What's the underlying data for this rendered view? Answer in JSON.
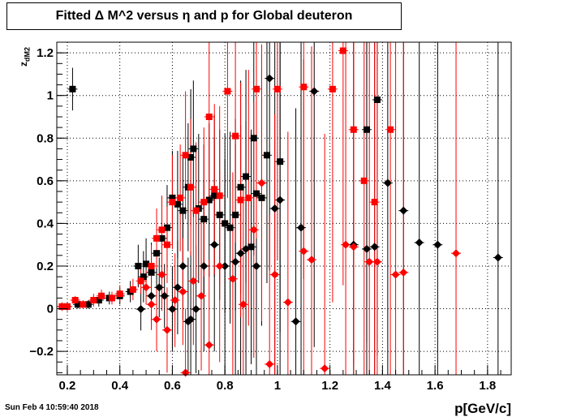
{
  "title": "Fitted Δ M^2 versus η and p for Global deuteron",
  "timestamp": "Sun Feb  4 10:59:40 2018",
  "chart_data": {
    "type": "scatter",
    "title": "Fitted Δ M^2 versus η and p for Global deuteron",
    "xlabel": "p[GeV/c]",
    "ylabel": "z_dM2",
    "xlim": [
      0.16,
      1.89
    ],
    "ylim": [
      -0.31,
      1.25
    ],
    "grid": true,
    "xticks": [
      "0.2",
      "0.4",
      "0.6",
      "0.8",
      "1",
      "1.2",
      "1.4",
      "1.6",
      "1.8"
    ],
    "yticks": [
      "-0.2",
      "0",
      "0.2",
      "0.4",
      "0.6",
      "0.8",
      "1",
      "1.2"
    ],
    "series": [
      {
        "color": "#000000",
        "marker": "square",
        "points": [
          [
            0.22,
            1.03,
            0.1
          ],
          [
            0.18,
            0.01,
            0.02
          ],
          [
            0.2,
            0.01,
            0.02
          ],
          [
            0.24,
            0.02,
            0.02
          ],
          [
            0.28,
            0.02,
            0.02
          ],
          [
            0.32,
            0.04,
            0.03
          ],
          [
            0.36,
            0.05,
            0.03
          ],
          [
            0.4,
            0.06,
            0.04
          ],
          [
            0.44,
            0.08,
            0.05
          ],
          [
            0.47,
            0.2,
            0.1
          ],
          [
            0.49,
            0.15,
            0.12
          ],
          [
            0.5,
            0.21,
            0.12
          ],
          [
            0.52,
            0.17,
            0.14
          ],
          [
            0.54,
            0.26,
            0.16
          ],
          [
            0.56,
            0.33,
            0.2
          ],
          [
            0.58,
            0.38,
            0.2
          ],
          [
            0.6,
            0.52,
            0.22
          ],
          [
            0.62,
            0.49,
            0.25
          ],
          [
            0.64,
            0.46,
            0.25
          ],
          [
            0.66,
            0.57,
            0.3
          ],
          [
            0.67,
            0.71,
            0.32
          ],
          [
            0.68,
            0.75,
            0.32
          ],
          [
            0.7,
            0.47,
            0.35
          ],
          [
            0.72,
            0.42,
            0.35
          ],
          [
            0.74,
            0.51,
            0.36
          ],
          [
            0.76,
            0.53,
            0.38
          ],
          [
            0.78,
            0.44,
            0.4
          ],
          [
            0.8,
            0.4,
            0.42
          ],
          [
            0.82,
            0.38,
            0.45
          ],
          [
            0.84,
            0.44,
            0.45
          ],
          [
            0.86,
            0.57,
            0.5
          ],
          [
            0.88,
            0.62,
            0.5
          ],
          [
            0.9,
            0.29,
            0.55
          ],
          [
            0.91,
            0.8,
            0.55
          ],
          [
            0.92,
            0.54,
            0.6
          ],
          [
            0.94,
            0.52,
            0.6
          ],
          [
            0.96,
            0.72,
            0.6
          ],
          [
            1.01,
            0.69,
            0.8
          ],
          [
            1.34,
            0.84,
            1.0
          ],
          [
            1.38,
            0.98,
            1.2
          ]
        ]
      },
      {
        "color": "#000000",
        "marker": "diamond",
        "points": [
          [
            0.48,
            -0.002,
            0.1
          ],
          [
            0.52,
            0.06,
            0.12
          ],
          [
            0.55,
            0.1,
            0.14
          ],
          [
            0.57,
            0.06,
            0.15
          ],
          [
            0.6,
            -0.002,
            0.2
          ],
          [
            0.62,
            0.1,
            0.22
          ],
          [
            0.64,
            0.2,
            0.25
          ],
          [
            0.66,
            -0.06,
            0.3
          ],
          [
            0.67,
            -0.05,
            0.32
          ],
          [
            0.69,
            -0.002,
            0.3
          ],
          [
            0.72,
            0.2,
            0.4
          ],
          [
            0.76,
            0.3,
            0.5
          ],
          [
            0.8,
            0.2,
            0.5
          ],
          [
            0.84,
            0.22,
            0.55
          ],
          [
            0.86,
            0.26,
            0.6
          ],
          [
            0.88,
            0.28,
            0.6
          ],
          [
            0.92,
            0.2,
            0.7
          ],
          [
            0.97,
            1.08,
            0.9
          ],
          [
            0.99,
            0.47,
            0.9
          ],
          [
            1.01,
            0.51,
            0.9
          ],
          [
            1.07,
            -0.06,
            1.0
          ],
          [
            1.09,
            0.38,
            1.0
          ],
          [
            1.14,
            1.02,
            1.2
          ],
          [
            1.29,
            0.3,
            1.3
          ],
          [
            1.34,
            0.28,
            1.3
          ],
          [
            1.37,
            0.29,
            1.3
          ],
          [
            1.42,
            0.59,
            1.5
          ],
          [
            1.48,
            0.46,
            1.5
          ],
          [
            1.54,
            0.31,
            1.6
          ],
          [
            1.61,
            0.3,
            1.6
          ],
          [
            1.84,
            0.24,
            1.6
          ]
        ]
      },
      {
        "color": "#ff0000",
        "marker": "square",
        "points": [
          [
            0.18,
            0.01,
            0.02
          ],
          [
            0.2,
            0.01,
            0.02
          ],
          [
            0.23,
            0.04,
            0.02
          ],
          [
            0.26,
            0.02,
            0.02
          ],
          [
            0.3,
            0.04,
            0.03
          ],
          [
            0.33,
            0.06,
            0.03
          ],
          [
            0.37,
            0.05,
            0.03
          ],
          [
            0.4,
            0.07,
            0.04
          ],
          [
            0.45,
            0.09,
            0.05
          ],
          [
            0.48,
            0.13,
            0.06
          ],
          [
            0.52,
            0.2,
            0.1
          ],
          [
            0.54,
            0.33,
            0.14
          ],
          [
            0.56,
            0.37,
            0.16
          ],
          [
            0.58,
            0.3,
            0.18
          ],
          [
            0.6,
            0.5,
            0.22
          ],
          [
            0.63,
            0.52,
            0.25
          ],
          [
            0.65,
            0.72,
            0.3
          ],
          [
            0.67,
            0.57,
            0.32
          ],
          [
            0.69,
            0.46,
            0.32
          ],
          [
            0.72,
            0.5,
            0.35
          ],
          [
            0.74,
            0.9,
            0.4
          ],
          [
            0.76,
            0.56,
            0.4
          ],
          [
            0.78,
            0.53,
            0.42
          ],
          [
            0.81,
            1.02,
            0.5
          ],
          [
            0.84,
            0.81,
            0.5
          ],
          [
            0.86,
            0.51,
            0.55
          ],
          [
            0.89,
            0.52,
            0.6
          ],
          [
            0.92,
            1.03,
            0.7
          ],
          [
            1.0,
            1.03,
            0.8
          ],
          [
            1.1,
            1.04,
            0.9
          ],
          [
            1.21,
            1.03,
            1.0
          ],
          [
            1.25,
            1.21,
            1.1
          ],
          [
            1.29,
            0.84,
            1.1
          ],
          [
            1.33,
            0.6,
            1.2
          ],
          [
            1.37,
            0.5,
            1.2
          ],
          [
            1.43,
            0.84,
            1.3
          ]
        ]
      },
      {
        "color": "#ff0000",
        "marker": "diamond",
        "points": [
          [
            0.5,
            0.1,
            0.08
          ],
          [
            0.52,
            0.02,
            0.12
          ],
          [
            0.54,
            -0.05,
            0.15
          ],
          [
            0.56,
            0.16,
            0.17
          ],
          [
            0.58,
            -0.1,
            0.2
          ],
          [
            0.61,
            0.04,
            0.22
          ],
          [
            0.64,
            0.08,
            0.25
          ],
          [
            0.65,
            -0.3,
            0.3
          ],
          [
            0.68,
            0.13,
            0.3
          ],
          [
            0.71,
            0.06,
            0.35
          ],
          [
            0.74,
            -0.17,
            0.4
          ],
          [
            0.78,
            0.2,
            0.45
          ],
          [
            0.83,
            0.14,
            0.5
          ],
          [
            0.87,
            0.02,
            0.55
          ],
          [
            0.91,
            0.37,
            0.6
          ],
          [
            0.94,
            0.59,
            0.65
          ],
          [
            0.97,
            -0.26,
            0.7
          ],
          [
            0.99,
            0.16,
            0.75
          ],
          [
            1.04,
            0.03,
            0.8
          ],
          [
            1.1,
            0.27,
            0.9
          ],
          [
            1.13,
            0.23,
            1.0
          ],
          [
            1.18,
            -0.28,
            1.1
          ],
          [
            1.26,
            0.3,
            1.2
          ],
          [
            1.29,
            0.29,
            1.2
          ],
          [
            1.35,
            0.22,
            1.3
          ],
          [
            1.38,
            0.22,
            1.3
          ],
          [
            1.45,
            0.16,
            1.4
          ],
          [
            1.48,
            0.17,
            1.4
          ],
          [
            1.68,
            0.26,
            1.5
          ]
        ]
      }
    ]
  }
}
